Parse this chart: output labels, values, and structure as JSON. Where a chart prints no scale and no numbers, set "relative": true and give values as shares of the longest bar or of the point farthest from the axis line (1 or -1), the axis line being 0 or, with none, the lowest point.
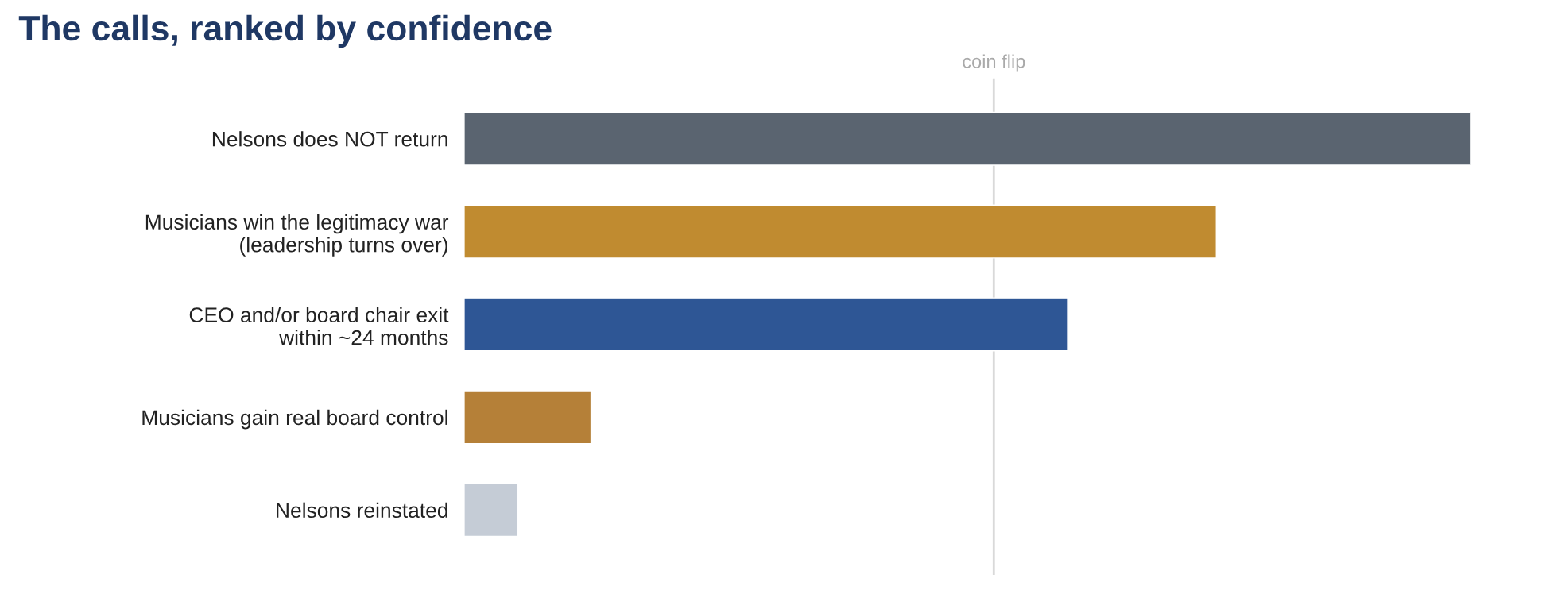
{
  "chart_data": {
    "type": "bar",
    "orientation": "horizontal",
    "relative": true,
    "title": "The calls, ranked by confidence",
    "categories": [
      "Nelsons does NOT return",
      "Musicians win the legitimacy war\n(leadership turns over)",
      "CEO and/or board chair exit\nwithin ~24 months",
      "Musicians gain real board control",
      "Nelsons reinstated"
    ],
    "values": [
      1,
      0.747,
      0.6,
      0.126,
      0.053
    ],
    "colors": [
      "#5a6470",
      "#c08b30",
      "#2e5695",
      "#b58038",
      "#c5ccd6"
    ],
    "ref_lines": [
      {
        "axis": "x",
        "value": 0.526,
        "label": "coin flip",
        "color": "#d9d9d9"
      }
    ],
    "grid": false,
    "legend": false
  }
}
